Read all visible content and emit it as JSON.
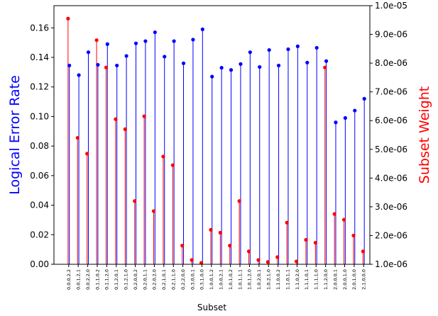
{
  "chart_data": {
    "type": "stem",
    "xlabel": "Subset",
    "ylabel_left": "Logical Error Rate",
    "ylabel_right": "Subset Weight",
    "ylim_left": [
      0,
      0.175
    ],
    "ylim_right": [
      1e-06,
      1e-05
    ],
    "left_ticks": [
      "0.00",
      "0.02",
      "0.04",
      "0.06",
      "0.08",
      "0.10",
      "0.12",
      "0.14",
      "0.16"
    ],
    "right_ticks": [
      "1.0e-06",
      "2.0e-06",
      "3.0e-06",
      "4.0e-06",
      "5.0e-06",
      "6.0e-06",
      "7.0e-06",
      "8.0e-06",
      "9.0e-06",
      "1.0e-05"
    ],
    "colors": {
      "left": "#0000ff",
      "right": "#ff0000"
    },
    "categories": [
      "0,0,0,2,2",
      "0,0,1,2,1",
      "0,0,2,2,0",
      "0,1,1,0,2",
      "0,1,1,2,0",
      "0,1,2,0,1",
      "0,1,2,1,0",
      "0,2,0,0,2",
      "0,2,0,1,1",
      "0,2,0,2,0",
      "0,2,1,0,1",
      "0,2,1,1,0",
      "0,2,2,0,0",
      "0,3,0,0,1",
      "0,3,1,0,0",
      "1,0,0,1,2",
      "1,0,0,2,1",
      "1,0,1,0,2",
      "1,0,1,1,1",
      "1,0,1,2,0",
      "1,0,2,0,1",
      "1,0,2,1,0",
      "1,1,0,0,2",
      "1,1,0,1,1",
      "1,1,0,2,0",
      "1,1,1,0,1",
      "1,1,1,1,0",
      "1,1,2,0,0",
      "2,0,0,0,1",
      "2,0,0,1,0",
      "2,0,1,0,0",
      "2,1,0,0,0"
    ],
    "series": [
      {
        "name": "Logical Error Rate",
        "axis": "left",
        "values": [
          0.1345,
          0.128,
          0.1435,
          0.135,
          0.149,
          0.1345,
          0.141,
          0.1495,
          0.151,
          0.157,
          0.1405,
          0.151,
          0.136,
          0.152,
          0.159,
          0.127,
          0.133,
          0.1315,
          0.1355,
          0.1435,
          0.1335,
          0.145,
          0.1345,
          0.1455,
          0.1475,
          0.1365,
          0.1465,
          0.1375,
          0.096,
          0.099,
          0.104,
          0.112
        ]
      },
      {
        "name": "Subset Weight",
        "axis": "right",
        "values": [
          9.55e-06,
          5.4e-06,
          4.85e-06,
          8.8e-06,
          7.85e-06,
          6.05e-06,
          5.7e-06,
          3.2e-06,
          6.15e-06,
          2.85e-06,
          4.75e-06,
          4.45e-06,
          1.65e-06,
          1.15e-06,
          1.05e-06,
          2.2e-06,
          2.1e-06,
          1.65e-06,
          3.2e-06,
          1.45e-06,
          1.15e-06,
          1.08e-06,
          1.25e-06,
          2.45e-06,
          1.1e-06,
          1.85e-06,
          1.75e-06,
          7.85e-06,
          2.75e-06,
          2.55e-06,
          2e-06,
          1.45e-06
        ]
      }
    ]
  }
}
